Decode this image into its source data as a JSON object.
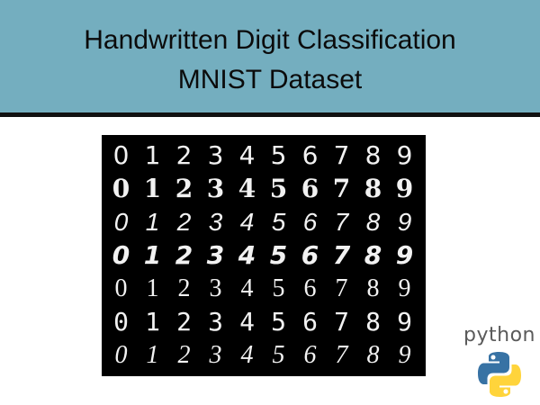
{
  "header": {
    "title_line1": "Handwritten Digit Classification",
    "title_line2": "MNIST Dataset",
    "background_color": "#74aebf",
    "rule_color": "#111111"
  },
  "digit_grid": {
    "rows": [
      [
        "0",
        "1",
        "2",
        "3",
        "4",
        "5",
        "6",
        "7",
        "8",
        "9"
      ],
      [
        "0",
        "1",
        "2",
        "3",
        "4",
        "5",
        "6",
        "7",
        "8",
        "9"
      ],
      [
        "0",
        "1",
        "2",
        "3",
        "4",
        "5",
        "6",
        "7",
        "8",
        "9"
      ],
      [
        "0",
        "1",
        "2",
        "3",
        "4",
        "5",
        "6",
        "7",
        "8",
        "9"
      ],
      [
        "0",
        "1",
        "2",
        "3",
        "4",
        "5",
        "6",
        "7",
        "8",
        "9"
      ],
      [
        "0",
        "1",
        "2",
        "3",
        "4",
        "5",
        "6",
        "7",
        "8",
        "9"
      ],
      [
        "0",
        "1",
        "2",
        "3",
        "4",
        "5",
        "6",
        "7",
        "8",
        "9"
      ]
    ],
    "background_color": "#000000",
    "digit_color": "#f2f2f2"
  },
  "logo": {
    "icon": "python-logo-icon",
    "wordmark": "python",
    "blue": "#3772a4",
    "yellow": "#ffd43b"
  }
}
